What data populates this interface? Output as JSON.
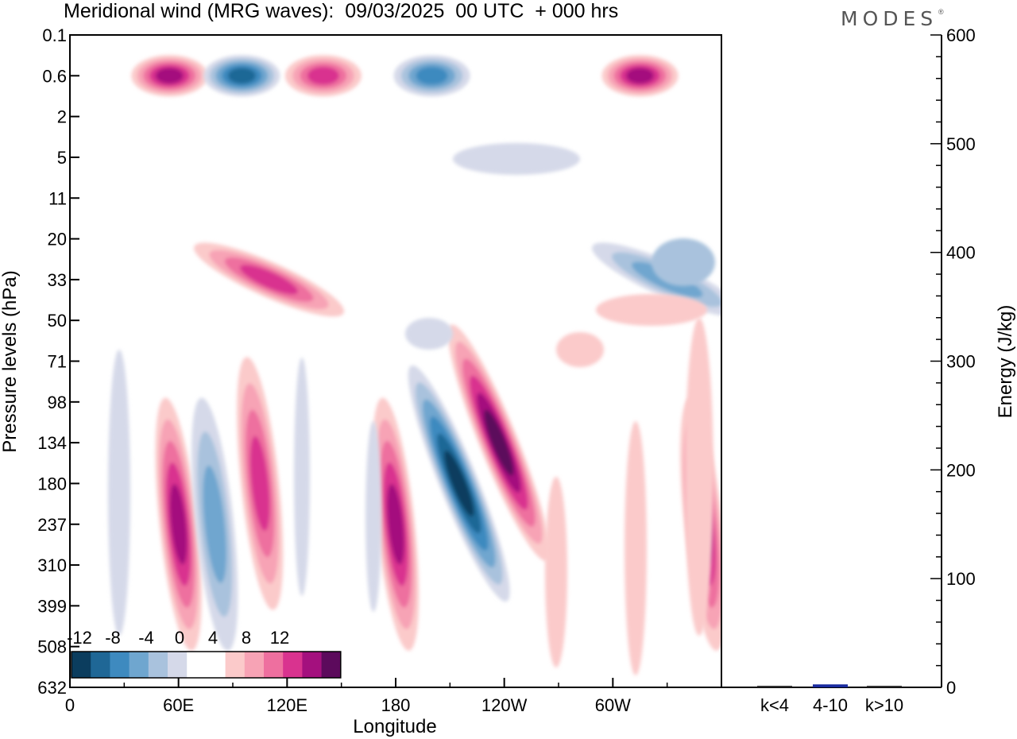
{
  "title": "Meridional wind (MRG waves):  09/03/2025  00 UTC  + 000 hrs",
  "brand": "MODES",
  "brand_mark": "®",
  "colors": {
    "neg": [
      "#0b3d5e",
      "#1f6796",
      "#3e8abf",
      "#6fa6cf",
      "#a9c2dd",
      "#d5d9e9"
    ],
    "zero": "#ffffff",
    "pos": [
      "#fbcaca",
      "#f7a3b5",
      "#ee6f9f",
      "#d9338f",
      "#a4107e",
      "#5c0a5c"
    ],
    "bar": "#1a2b9e"
  },
  "chart_data": [
    {
      "type": "heatmap",
      "title": "Meridional wind (MRG waves):  09/03/2025  00 UTC  + 000 hrs",
      "xlabel": "Longitude",
      "ylabel": "Pressure levels (hPa)",
      "x_ticks": [
        "0",
        "60E",
        "120E",
        "180",
        "120W",
        "60W"
      ],
      "y_ticks": [
        "0.1",
        "0.6",
        "2",
        "5",
        "11",
        "20",
        "33",
        "50",
        "71",
        "98",
        "134",
        "180",
        "237",
        "310",
        "399",
        "508",
        "632"
      ],
      "colorbar_labels": [
        "-12",
        "-8",
        "-4",
        "0",
        "4",
        "8",
        "12"
      ],
      "features": [
        {
          "lon": 60,
          "level": "237",
          "value": 10
        },
        {
          "lon": 80,
          "level": "237",
          "value": -6
        },
        {
          "lon": 105,
          "level": "180",
          "value": 8
        },
        {
          "lon": 180,
          "level": "237",
          "value": 10
        },
        {
          "lon": 215,
          "level": "180",
          "value": -14
        },
        {
          "lon": 237,
          "level": "134",
          "value": 12
        },
        {
          "lon": 350,
          "level": "237",
          "value": 9
        },
        {
          "lon": 55,
          "level": "0.6",
          "value": 10
        },
        {
          "lon": 95,
          "level": "0.6",
          "value": -10
        },
        {
          "lon": 140,
          "level": "0.6",
          "value": 8
        },
        {
          "lon": 200,
          "level": "0.6",
          "value": -8
        },
        {
          "lon": 315,
          "level": "0.6",
          "value": 10
        },
        {
          "lon": 110,
          "level": "33",
          "value": 8
        },
        {
          "lon": 330,
          "level": "33",
          "value": -5
        }
      ]
    },
    {
      "type": "bar",
      "categories": [
        "k<4",
        "4-10",
        "k>10"
      ],
      "values": [
        0,
        2,
        0
      ],
      "ylabel": "Energy (J/kg)",
      "ylim": [
        0,
        600
      ],
      "y_ticks": [
        "0",
        "100",
        "200",
        "300",
        "400",
        "500",
        "600"
      ]
    }
  ]
}
